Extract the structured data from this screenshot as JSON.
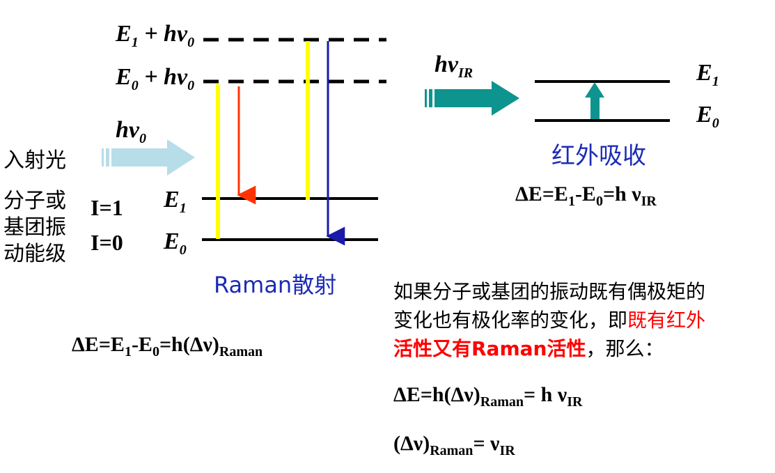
{
  "colors": {
    "yellow": "#ffff00",
    "red": "#ff3300",
    "blue": "#1a1aa8",
    "teal": "#0e948f",
    "lightblue": "#b7dde8",
    "raman_label": "#1b2bb5",
    "ir_label": "#1b2bb5",
    "highlight": "#ff0000"
  },
  "left": {
    "virtual_top": {
      "label_e": "E",
      "label_sub": "1",
      "label_rest": " + hν",
      "label_sub2": "0"
    },
    "virtual_bottom": {
      "label_e": "E",
      "label_sub": "0",
      "label_rest": " + hν",
      "label_sub2": "0"
    },
    "incident_label": "hν",
    "incident_sub": "0",
    "incident_text": "入射光",
    "levels_text": [
      "分子或",
      "基团振",
      "动能级"
    ],
    "i1": "I=1",
    "i0": "I=0",
    "e1": "E",
    "e1_sub": "1",
    "e0": "E",
    "e0_sub": "0",
    "raman_title": "Raman散射",
    "equation": {
      "a": "ΔE=E",
      "s1": "1",
      "b": "-E",
      "s0": "0",
      "c": "=h(Δν)",
      "sr": "Raman"
    }
  },
  "right": {
    "ir_label": "hν",
    "ir_sub": "IR",
    "e1": "E",
    "e1_sub": "1",
    "e0": "E",
    "e0_sub": "0",
    "ir_title": "红外吸收",
    "equation": {
      "a": "ΔE=E",
      "s1": "1",
      "b": "-E",
      "s0": "0",
      "c": "=h ν",
      "sr": "IR"
    }
  },
  "text": {
    "p1": "如果分子或基团的振动既有偶极矩的",
    "p2a": "变化也有极化率的变化，即",
    "p2b": "既有红外",
    "p3a": "活性又有Raman活性",
    "p3b": "，那么：",
    "eq1": {
      "a": "ΔE=h(Δν)",
      "s1": "Raman",
      "b": "= h ν",
      "s2": "IR"
    },
    "eq2": {
      "a": "(Δν)",
      "s1": "Raman",
      "b": "=  ν",
      "s2": "IR"
    }
  }
}
